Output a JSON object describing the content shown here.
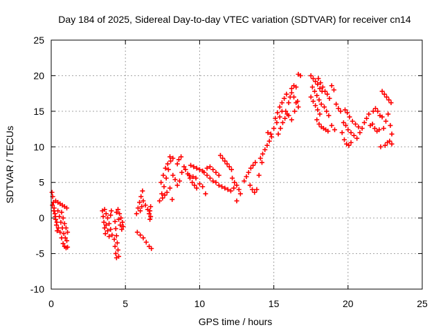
{
  "chart_data": {
    "type": "scatter",
    "title": "Day 184 of 2025, Sidereal Day-to-day VTEC variation (SDTVAR) for receiver cn14",
    "xlabel": "GPS time / hours",
    "ylabel": "SDTVAR / TECUs",
    "xlim": [
      0,
      25
    ],
    "ylim": [
      -10,
      25
    ],
    "xticks": [
      0,
      5,
      10,
      15,
      20,
      25
    ],
    "yticks": [
      -10,
      -5,
      0,
      5,
      10,
      15,
      20,
      25
    ],
    "xtick_labels": [
      "0",
      "5",
      "10",
      "15",
      "20",
      "25"
    ],
    "ytick_labels": [
      "-10",
      "-5",
      "0",
      "5",
      "10",
      "15",
      "20",
      "25"
    ],
    "grid": true,
    "legend": "none",
    "marker": "plus",
    "color": "#ff0000",
    "series": [
      {
        "name": "SDTVAR",
        "points": [
          [
            0.05,
            3.6
          ],
          [
            0.1,
            3.0
          ],
          [
            0.15,
            2.2
          ],
          [
            0.2,
            1.4
          ],
          [
            0.25,
            0.6
          ],
          [
            0.3,
            -0.2
          ],
          [
            0.35,
            -1.0
          ],
          [
            0.4,
            -1.8
          ],
          [
            0.08,
            1.8
          ],
          [
            0.18,
            1.0
          ],
          [
            0.28,
            0.2
          ],
          [
            0.38,
            -0.6
          ],
          [
            0.48,
            -1.4
          ],
          [
            0.3,
            2.4
          ],
          [
            0.45,
            2.2
          ],
          [
            0.6,
            2.0
          ],
          [
            0.75,
            1.8
          ],
          [
            0.9,
            1.6
          ],
          [
            1.05,
            1.4
          ],
          [
            0.45,
            1.0
          ],
          [
            0.55,
            0.2
          ],
          [
            0.65,
            -0.6
          ],
          [
            0.75,
            -1.4
          ],
          [
            0.85,
            -2.2
          ],
          [
            0.95,
            -2.8
          ],
          [
            1.05,
            -3.2
          ],
          [
            0.6,
            -2.0
          ],
          [
            0.7,
            -2.8
          ],
          [
            0.8,
            -3.6
          ],
          [
            0.9,
            -4.0
          ],
          [
            1.0,
            -4.2
          ],
          [
            1.1,
            -4.1
          ],
          [
            0.7,
            0.8
          ],
          [
            0.8,
            0.0
          ],
          [
            0.9,
            -0.8
          ],
          [
            1.0,
            -1.4
          ],
          [
            1.1,
            -2.0
          ],
          [
            3.45,
            1.0
          ],
          [
            3.5,
            0.2
          ],
          [
            3.55,
            -0.6
          ],
          [
            3.6,
            -1.4
          ],
          [
            3.65,
            -2.2
          ],
          [
            3.6,
            1.2
          ],
          [
            3.7,
            0.6
          ],
          [
            3.8,
            0.0
          ],
          [
            3.9,
            -0.8
          ],
          [
            4.0,
            -1.6
          ],
          [
            4.1,
            -2.4
          ],
          [
            3.7,
            -1.0
          ],
          [
            3.8,
            -1.8
          ],
          [
            3.9,
            -2.6
          ],
          [
            4.0,
            0.4
          ],
          [
            4.05,
            1.0
          ],
          [
            4.3,
            -0.5
          ],
          [
            4.35,
            -1.5
          ],
          [
            4.4,
            -2.5
          ],
          [
            4.45,
            -3.5
          ],
          [
            4.5,
            -4.5
          ],
          [
            4.55,
            -5.4
          ],
          [
            4.25,
            -3.0
          ],
          [
            4.3,
            -4.0
          ],
          [
            4.35,
            -5.0
          ],
          [
            4.4,
            -5.6
          ],
          [
            4.5,
            1.2
          ],
          [
            4.6,
            0.6
          ],
          [
            4.7,
            0.0
          ],
          [
            4.8,
            -0.6
          ],
          [
            4.85,
            -1.2
          ],
          [
            4.4,
            0.8
          ],
          [
            4.55,
            -0.2
          ],
          [
            4.65,
            -1.0
          ],
          [
            4.75,
            -1.6
          ],
          [
            5.75,
            0.6
          ],
          [
            5.85,
            1.4
          ],
          [
            5.95,
            2.2
          ],
          [
            6.05,
            3.0
          ],
          [
            6.15,
            3.8
          ],
          [
            6.0,
            1.0
          ],
          [
            6.1,
            1.6
          ],
          [
            6.2,
            2.4
          ],
          [
            6.35,
            1.8
          ],
          [
            6.5,
            1.2
          ],
          [
            6.6,
            0.6
          ],
          [
            5.8,
            -2.0
          ],
          [
            6.0,
            -2.4
          ],
          [
            6.2,
            -2.8
          ],
          [
            6.4,
            -3.4
          ],
          [
            6.6,
            -4.0
          ],
          [
            6.75,
            -4.3
          ],
          [
            6.7,
            0.2
          ],
          [
            6.65,
            1.0
          ],
          [
            6.7,
            1.6
          ],
          [
            6.65,
            -0.2
          ],
          [
            7.3,
            2.4
          ],
          [
            7.45,
            3.4
          ],
          [
            7.6,
            4.4
          ],
          [
            7.75,
            5.6
          ],
          [
            7.9,
            6.8
          ],
          [
            8.05,
            8.0
          ],
          [
            8.2,
            8.4
          ],
          [
            7.4,
            5.0
          ],
          [
            7.55,
            6.0
          ],
          [
            7.7,
            7.0
          ],
          [
            7.85,
            7.6
          ],
          [
            8.0,
            8.6
          ],
          [
            7.5,
            2.8
          ],
          [
            7.65,
            3.2
          ],
          [
            7.8,
            3.6
          ],
          [
            8.0,
            4.2
          ],
          [
            8.15,
            2.6
          ],
          [
            8.2,
            6.0
          ],
          [
            8.35,
            5.4
          ],
          [
            8.5,
            4.6
          ],
          [
            8.65,
            5.2
          ],
          [
            8.8,
            6.4
          ],
          [
            8.95,
            7.2
          ],
          [
            8.5,
            7.6
          ],
          [
            8.6,
            8.2
          ],
          [
            8.75,
            8.6
          ],
          [
            9.05,
            6.8
          ],
          [
            9.2,
            6.2
          ],
          [
            9.35,
            5.6
          ],
          [
            9.5,
            5.0
          ],
          [
            9.65,
            4.6
          ],
          [
            9.8,
            4.2
          ],
          [
            9.4,
            7.4
          ],
          [
            9.6,
            7.2
          ],
          [
            9.8,
            7.0
          ],
          [
            10.0,
            6.8
          ],
          [
            10.2,
            6.6
          ],
          [
            9.3,
            6.0
          ],
          [
            9.55,
            5.8
          ],
          [
            9.75,
            5.6
          ],
          [
            10.0,
            4.8
          ],
          [
            10.2,
            4.4
          ],
          [
            10.4,
            3.4
          ],
          [
            10.3,
            6.4
          ],
          [
            10.5,
            6.0
          ],
          [
            10.7,
            5.6
          ],
          [
            10.9,
            5.2
          ],
          [
            11.1,
            5.0
          ],
          [
            10.5,
            7.0
          ],
          [
            10.7,
            7.2
          ],
          [
            10.9,
            6.8
          ],
          [
            11.1,
            6.4
          ],
          [
            11.3,
            6.0
          ],
          [
            11.4,
            8.8
          ],
          [
            11.55,
            8.4
          ],
          [
            11.7,
            8.0
          ],
          [
            11.85,
            7.6
          ],
          [
            12.0,
            7.2
          ],
          [
            12.15,
            6.8
          ],
          [
            11.3,
            4.6
          ],
          [
            11.5,
            4.4
          ],
          [
            11.7,
            4.2
          ],
          [
            11.9,
            4.0
          ],
          [
            12.1,
            3.8
          ],
          [
            12.3,
            4.2
          ],
          [
            12.2,
            5.6
          ],
          [
            12.35,
            5.0
          ],
          [
            12.5,
            4.6
          ],
          [
            12.65,
            4.0
          ],
          [
            12.75,
            3.4
          ],
          [
            12.5,
            2.4
          ],
          [
            13.0,
            5.2
          ],
          [
            13.15,
            5.8
          ],
          [
            13.3,
            6.4
          ],
          [
            13.45,
            7.0
          ],
          [
            13.6,
            7.4
          ],
          [
            13.75,
            7.8
          ],
          [
            13.4,
            4.6
          ],
          [
            13.55,
            4.0
          ],
          [
            13.7,
            3.6
          ],
          [
            13.85,
            4.0
          ],
          [
            14.0,
            6.0
          ],
          [
            14.2,
            7.8
          ],
          [
            14.1,
            8.4
          ],
          [
            14.25,
            9.0
          ],
          [
            14.4,
            9.6
          ],
          [
            14.55,
            10.2
          ],
          [
            14.7,
            10.8
          ],
          [
            14.85,
            11.4
          ],
          [
            14.6,
            12.0
          ],
          [
            14.8,
            11.8
          ],
          [
            15.0,
            12.6
          ],
          [
            15.2,
            13.4
          ],
          [
            15.4,
            14.2
          ],
          [
            15.55,
            15.0
          ],
          [
            15.1,
            14.0
          ],
          [
            15.25,
            14.8
          ],
          [
            15.4,
            15.6
          ],
          [
            15.55,
            16.2
          ],
          [
            15.7,
            16.8
          ],
          [
            15.85,
            17.4
          ],
          [
            15.3,
            11.8
          ],
          [
            15.45,
            12.6
          ],
          [
            15.6,
            13.4
          ],
          [
            15.75,
            14.0
          ],
          [
            15.9,
            14.6
          ],
          [
            16.0,
            16.2
          ],
          [
            16.1,
            17.0
          ],
          [
            16.2,
            17.6
          ],
          [
            16.35,
            17.0
          ],
          [
            16.5,
            16.2
          ],
          [
            16.65,
            15.6
          ],
          [
            16.2,
            18.2
          ],
          [
            16.35,
            18.6
          ],
          [
            16.5,
            18.4
          ],
          [
            16.65,
            20.2
          ],
          [
            16.8,
            20.0
          ],
          [
            15.8,
            15.0
          ],
          [
            16.0,
            14.4
          ],
          [
            16.2,
            13.8
          ],
          [
            16.4,
            15.0
          ],
          [
            16.6,
            16.4
          ],
          [
            17.5,
            20.0
          ],
          [
            17.65,
            19.6
          ],
          [
            17.8,
            19.2
          ],
          [
            17.95,
            18.8
          ],
          [
            18.1,
            18.2
          ],
          [
            18.25,
            17.8
          ],
          [
            17.6,
            18.4
          ],
          [
            17.75,
            17.8
          ],
          [
            17.9,
            17.2
          ],
          [
            18.05,
            16.6
          ],
          [
            18.2,
            16.0
          ],
          [
            18.0,
            19.6
          ],
          [
            18.15,
            19.0
          ],
          [
            18.3,
            18.4
          ],
          [
            18.45,
            17.8
          ],
          [
            18.6,
            17.4
          ],
          [
            18.75,
            16.8
          ],
          [
            17.5,
            17.0
          ],
          [
            17.65,
            16.4
          ],
          [
            17.8,
            15.8
          ],
          [
            17.95,
            15.2
          ],
          [
            18.1,
            14.6
          ],
          [
            17.9,
            13.8
          ],
          [
            18.05,
            13.2
          ],
          [
            18.2,
            12.8
          ],
          [
            18.35,
            12.6
          ],
          [
            18.5,
            12.4
          ],
          [
            18.65,
            12.2
          ],
          [
            18.4,
            15.6
          ],
          [
            18.55,
            15.0
          ],
          [
            18.7,
            14.4
          ],
          [
            18.9,
            13.0
          ],
          [
            19.1,
            12.4
          ],
          [
            18.9,
            18.6
          ],
          [
            19.05,
            18.0
          ],
          [
            19.2,
            16.0
          ],
          [
            19.35,
            15.4
          ],
          [
            19.5,
            15.0
          ],
          [
            19.6,
            12.0
          ],
          [
            19.75,
            11.0
          ],
          [
            19.9,
            10.4
          ],
          [
            20.05,
            10.2
          ],
          [
            20.2,
            10.6
          ],
          [
            19.7,
            13.4
          ],
          [
            19.85,
            13.0
          ],
          [
            20.0,
            12.4
          ],
          [
            20.2,
            12.0
          ],
          [
            20.4,
            11.6
          ],
          [
            20.6,
            11.2
          ],
          [
            19.8,
            15.2
          ],
          [
            19.95,
            14.8
          ],
          [
            20.1,
            14.2
          ],
          [
            20.3,
            13.6
          ],
          [
            20.5,
            13.2
          ],
          [
            20.7,
            12.8
          ],
          [
            20.8,
            12.0
          ],
          [
            20.95,
            12.6
          ],
          [
            21.1,
            13.4
          ],
          [
            21.25,
            14.0
          ],
          [
            21.4,
            14.6
          ],
          [
            21.5,
            13.0
          ],
          [
            21.65,
            13.2
          ],
          [
            21.8,
            12.6
          ],
          [
            21.95,
            12.2
          ],
          [
            22.1,
            12.4
          ],
          [
            21.7,
            15.0
          ],
          [
            21.85,
            15.4
          ],
          [
            22.0,
            15.0
          ],
          [
            22.15,
            14.4
          ],
          [
            22.3,
            14.2
          ],
          [
            22.3,
            17.8
          ],
          [
            22.45,
            17.4
          ],
          [
            22.6,
            17.0
          ],
          [
            22.75,
            16.6
          ],
          [
            22.9,
            16.2
          ],
          [
            22.4,
            12.6
          ],
          [
            22.55,
            13.6
          ],
          [
            22.7,
            14.6
          ],
          [
            22.85,
            13.0
          ],
          [
            22.95,
            11.8
          ],
          [
            22.5,
            10.2
          ],
          [
            22.65,
            10.6
          ],
          [
            22.8,
            10.8
          ],
          [
            22.95,
            10.4
          ],
          [
            22.2,
            10.0
          ]
        ]
      }
    ]
  }
}
